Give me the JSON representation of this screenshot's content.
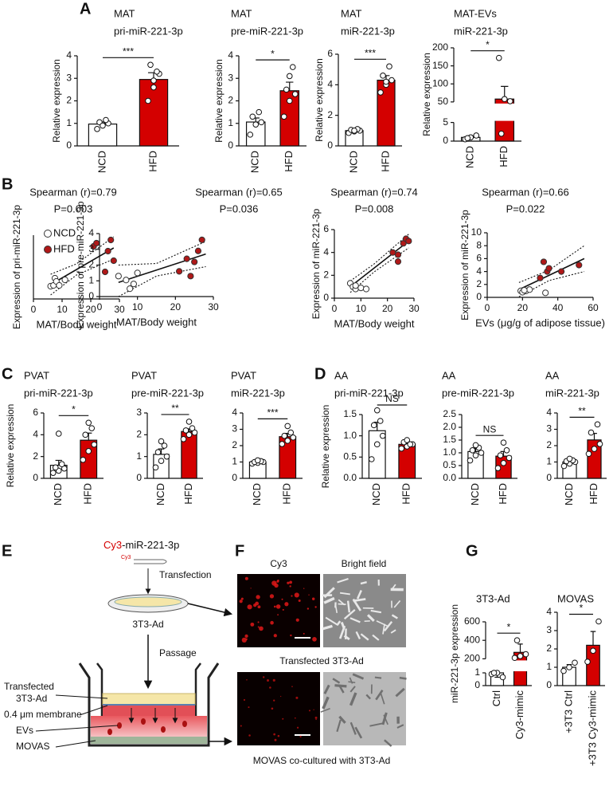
{
  "panel_labels": [
    "A",
    "B",
    "C",
    "D",
    "E",
    "F",
    "G"
  ],
  "chart_data": [
    {
      "type": "bar",
      "title": [
        "MAT",
        "pri-miR-221-3p"
      ],
      "y_label": "Relative expression",
      "categories": [
        "NCD",
        "HFD"
      ],
      "colors": [
        "#ffffff",
        "#d40000"
      ],
      "values": [
        0.97,
        2.95
      ],
      "errors": [
        0.08,
        0.3
      ],
      "points": [
        [
          0.75,
          0.95,
          1.0,
          1.05,
          1.15,
          0.9
        ],
        [
          2.0,
          2.6,
          3.2,
          3.6,
          3.3,
          2.9
        ]
      ],
      "significance": "***",
      "ylim": [
        0,
        4
      ],
      "yticks": [
        0,
        1,
        2,
        3,
        4
      ]
    },
    {
      "type": "bar",
      "title": [
        "MAT",
        "pre-miR-221-3p"
      ],
      "y_label": "Relative expression",
      "categories": [
        "NCD",
        "HFD"
      ],
      "colors": [
        "#ffffff",
        "#d40000"
      ],
      "values": [
        1.06,
        2.45
      ],
      "errors": [
        0.18,
        0.38
      ],
      "points": [
        [
          0.5,
          0.95,
          1.05,
          1.3,
          1.5
        ],
        [
          1.3,
          2.0,
          2.3,
          2.5,
          3.5,
          3.1
        ]
      ],
      "significance": "*",
      "ylim": [
        0,
        4
      ],
      "yticks": [
        0,
        1,
        2,
        3,
        4
      ]
    },
    {
      "type": "bar",
      "title": [
        "MAT",
        "miR-221-3p"
      ],
      "y_label": "Relative expression",
      "categories": [
        "NCD",
        "HFD"
      ],
      "colors": [
        "#ffffff",
        "#d40000"
      ],
      "values": [
        1.0,
        4.3
      ],
      "errors": [
        0.05,
        0.3
      ],
      "points": [
        [
          0.85,
          0.95,
          1.0,
          1.05,
          1.1,
          1.0
        ],
        [
          3.5,
          4.0,
          4.3,
          4.6,
          5.2,
          4.2
        ]
      ],
      "significance": "***",
      "ylim": [
        0,
        6
      ],
      "yticks": [
        0,
        2,
        4,
        6
      ]
    },
    {
      "type": "bar",
      "title": [
        "MAT-EVs",
        "miR-221-3p"
      ],
      "y_label": "Relative expression",
      "categories": [
        "NCD",
        "HFD"
      ],
      "colors": [
        "#ffffff",
        "#d40000"
      ],
      "values": [
        1.0,
        58
      ],
      "errors": [
        0.4,
        35
      ],
      "points": [
        [
          0.5,
          1.0,
          1.5,
          0.8
        ],
        [
          172,
          58,
          52,
          2
        ]
      ],
      "significance": "*",
      "ylim": [
        0,
        200
      ],
      "axis_break": [
        5,
        50
      ],
      "yticks": [
        0,
        5,
        50,
        100,
        150,
        200
      ]
    },
    {
      "type": "scatter",
      "title": [
        "Spearman (r)=0.79",
        "P=0.003"
      ],
      "x_label": "MAT/Body weight",
      "y_label": "Expression of pri-miR-221-3p",
      "xlim": [
        0,
        30
      ],
      "xticks": [
        0,
        10,
        20,
        30
      ],
      "ylim": [
        0,
        4
      ],
      "series": [
        {
          "name": "NCD",
          "color": "#ffffff",
          "x": [
            6,
            7,
            7.5,
            8,
            9,
            11
          ],
          "values": [
            0.8,
            0.85,
            1.3,
            1.1,
            0.85,
            1.2
          ]
        },
        {
          "name": "HFD",
          "color": "#b01818",
          "x": [
            21,
            22,
            25,
            26,
            27,
            28
          ],
          "values": [
            3.3,
            3.5,
            1.7,
            3.0,
            3.7,
            2.4
          ]
        }
      ],
      "fit": {
        "x": [
          6,
          28
        ],
        "values": [
          0.9,
          3.2
        ]
      },
      "band_upper": {
        "x": [
          6,
          15,
          28
        ],
        "values": [
          1.55,
          2.2,
          3.9
        ]
      },
      "band_lower": {
        "x": [
          6,
          15,
          28
        ],
        "values": [
          0.25,
          1.5,
          2.5
        ]
      }
    },
    {
      "type": "scatter",
      "title": [
        "Spearman (r)=0.65",
        "P=0.036"
      ],
      "x_label": "MAT/Body weight",
      "y_label": "Expression of pre-miR-221-3p",
      "xlim": [
        0,
        30
      ],
      "xticks": [
        0,
        10,
        20,
        30
      ],
      "ylim": [
        0,
        4
      ],
      "yticks": [
        0,
        1,
        2,
        3,
        4
      ],
      "series": [
        {
          "color": "#ffffff",
          "x": [
            5,
            7,
            8,
            10,
            9
          ],
          "values": [
            1.3,
            1.05,
            0.5,
            1.5,
            0.8
          ]
        },
        {
          "color": "#b01818",
          "x": [
            21,
            23,
            24,
            26,
            27,
            25
          ],
          "values": [
            1.6,
            2.4,
            1.3,
            2.9,
            3.6,
            2.2
          ]
        }
      ],
      "fit": {
        "x": [
          5,
          28
        ],
        "values": [
          0.9,
          2.7
        ]
      },
      "band_upper": {
        "x": [
          5,
          15,
          28
        ],
        "values": [
          2.0,
          2.1,
          3.5
        ]
      },
      "band_lower": {
        "x": [
          5,
          15,
          28
        ],
        "values": [
          0.0,
          1.3,
          1.9
        ]
      }
    },
    {
      "type": "scatter",
      "title": [
        "Spearman (r)=0.74",
        "P=0.008"
      ],
      "x_label": "MAT/Body weight",
      "y_label": "Expression of miR-221-3p",
      "xlim": [
        0,
        30
      ],
      "xticks": [
        0,
        10,
        20,
        30
      ],
      "ylim": [
        0,
        6
      ],
      "yticks": [
        0,
        2,
        4,
        6
      ],
      "series": [
        {
          "color": "#ffffff",
          "x": [
            6,
            7,
            8,
            10,
            12,
            8
          ],
          "values": [
            1.3,
            1.0,
            0.8,
            0.9,
            0.8,
            1.1
          ]
        },
        {
          "color": "#b01818",
          "x": [
            22,
            24,
            24,
            26,
            27,
            28
          ],
          "values": [
            4.0,
            3.8,
            3.2,
            4.8,
            5.2,
            5.0
          ]
        }
      ],
      "fit": {
        "x": [
          6,
          28
        ],
        "values": [
          1.0,
          5.0
        ]
      },
      "band_upper": {
        "x": [
          6,
          15,
          28
        ],
        "values": [
          1.5,
          3.0,
          5.6
        ]
      },
      "band_lower": {
        "x": [
          6,
          15,
          28
        ],
        "values": [
          0.5,
          2.3,
          4.4
        ]
      }
    },
    {
      "type": "scatter",
      "title": [
        "Spearman (r)=0.66",
        "P=0.022"
      ],
      "x_label": "EVs (μg/g of adipose tissue)",
      "y_label": "Expression of miR-221-3p",
      "xlim": [
        0,
        60
      ],
      "xticks": [
        0,
        20,
        40,
        60
      ],
      "ylim": [
        0,
        10
      ],
      "yticks": [
        0,
        2,
        4,
        6,
        8,
        10
      ],
      "series": [
        {
          "color": "#ffffff",
          "x": [
            19,
            20,
            22,
            24,
            33,
            21
          ],
          "values": [
            1.0,
            0.8,
            1.0,
            1.2,
            0.7,
            1.1
          ]
        },
        {
          "color": "#b01818",
          "x": [
            30,
            32,
            34,
            35,
            42,
            52
          ],
          "values": [
            3.0,
            5.5,
            4.0,
            4.5,
            4.0,
            5.0
          ]
        }
      ],
      "fit": {
        "x": [
          18,
          55
        ],
        "values": [
          1.2,
          6.0
        ]
      },
      "band_upper": {
        "x": [
          18,
          35,
          55
        ],
        "values": [
          2.3,
          4.2,
          8.0
        ]
      },
      "band_lower": {
        "x": [
          18,
          35,
          55
        ],
        "values": [
          0.1,
          2.6,
          4.0
        ]
      }
    },
    {
      "type": "bar",
      "title": [
        "PVAT",
        "pri-miR-221-3p"
      ],
      "y_label": "Relative expression",
      "categories": [
        "NCD",
        "HFD"
      ],
      "colors": [
        "#ffffff",
        "#d40000"
      ],
      "values": [
        1.2,
        3.5
      ],
      "errors": [
        0.45,
        0.65
      ],
      "points": [
        [
          0.5,
          0.7,
          0.9,
          1.0,
          1.3,
          4.1
        ],
        [
          1.7,
          2.5,
          3.1,
          4.0,
          4.6,
          5.1
        ]
      ],
      "significance": "*",
      "ylim": [
        0,
        6
      ],
      "yticks": [
        0,
        2,
        4,
        6
      ]
    },
    {
      "type": "bar",
      "title": [
        "PVAT",
        "pre-miR-221-3p"
      ],
      "categories": [
        "NCD",
        "HFD"
      ],
      "colors": [
        "#ffffff",
        "#d40000"
      ],
      "values": [
        1.1,
        2.15
      ],
      "errors": [
        0.25,
        0.12
      ],
      "points": [
        [
          0.5,
          0.8,
          1.0,
          1.2,
          1.5,
          1.7
        ],
        [
          1.8,
          2.0,
          2.1,
          2.2,
          2.3,
          2.6
        ]
      ],
      "significance": "**",
      "ylim": [
        0,
        3
      ],
      "yticks": [
        0,
        1,
        2,
        3
      ]
    },
    {
      "type": "bar",
      "title": [
        "PVAT",
        "miR-221-3p"
      ],
      "categories": [
        "NCD",
        "HFD"
      ],
      "colors": [
        "#ffffff",
        "#d40000"
      ],
      "values": [
        1.0,
        2.55
      ],
      "errors": [
        0.05,
        0.2
      ],
      "points": [
        [
          0.9,
          0.95,
          1.0,
          1.0,
          1.05,
          1.1
        ],
        [
          2.1,
          2.3,
          2.5,
          2.6,
          2.8,
          3.2
        ]
      ],
      "significance": "***",
      "ylim": [
        0,
        4
      ],
      "yticks": [
        0,
        1,
        2,
        3,
        4
      ]
    },
    {
      "type": "bar",
      "title": [
        "AA",
        "pri-miR-221-3p"
      ],
      "y_label": "Relative expression",
      "categories": [
        "NCD",
        "HFD"
      ],
      "colors": [
        "#ffffff",
        "#d40000"
      ],
      "values": [
        1.12,
        0.8
      ],
      "errors": [
        0.2,
        0.05
      ],
      "points": [
        [
          0.45,
          0.8,
          1.0,
          1.25,
          1.35,
          1.6
        ],
        [
          0.7,
          0.75,
          0.8,
          0.85,
          0.8,
          0.9
        ]
      ],
      "significance": "NS",
      "ylim": [
        0,
        1.5
      ],
      "yticks": [
        {
          "value": 0,
          "label": "0.0"
        },
        {
          "value": 0.5,
          "label": "0.5"
        },
        {
          "value": 1,
          "label": "1.0"
        },
        {
          "value": 1.5,
          "label": "1.5"
        }
      ]
    },
    {
      "type": "bar",
      "title": [
        "AA",
        "pre-miR-221-3p"
      ],
      "categories": [
        "NCD",
        "HFD"
      ],
      "colors": [
        "#ffffff",
        "#d40000"
      ],
      "values": [
        1.05,
        0.87
      ],
      "errors": [
        0.12,
        0.18
      ],
      "points": [
        [
          0.7,
          0.9,
          1.0,
          1.1,
          1.2,
          1.3
        ],
        [
          0.4,
          0.6,
          0.8,
          0.9,
          1.1,
          1.4
        ]
      ],
      "significance": "NS",
      "ylim": [
        0,
        2.5
      ],
      "yticks": [
        {
          "value": 0,
          "label": "0.0"
        },
        {
          "value": 0.5,
          "label": "0.5"
        },
        {
          "value": 1,
          "label": "1.0"
        },
        {
          "value": 1.5,
          "label": "1.5"
        },
        {
          "value": 2,
          "label": "2.0"
        },
        {
          "value": 2.5,
          "label": "2.5"
        }
      ]
    },
    {
      "type": "bar",
      "title": [
        "AA",
        "miR-221-3p"
      ],
      "categories": [
        "NCD",
        "HFD"
      ],
      "colors": [
        "#ffffff",
        "#d40000"
      ],
      "values": [
        1.0,
        2.35
      ],
      "errors": [
        0.1,
        0.4
      ],
      "points": [
        [
          0.75,
          0.9,
          1.0,
          1.05,
          1.1,
          1.2
        ],
        [
          1.5,
          1.8,
          2.1,
          2.8,
          3.3
        ]
      ],
      "significance": "**",
      "ylim": [
        0,
        4
      ],
      "yticks": [
        0,
        1,
        2,
        3,
        4
      ]
    },
    {
      "type": "bar",
      "title": [
        "3T3-Ad"
      ],
      "y_label": "miR-221-3p expression",
      "categories": [
        "Ctrl",
        "Cy3-mimic"
      ],
      "colors": [
        "#ffffff",
        "#d40000"
      ],
      "values": [
        1.0,
        270
      ],
      "errors": [
        0.05,
        90
      ],
      "points": [
        [
          0.9,
          1.0,
          1.05,
          1.0
        ],
        [
          210,
          230,
          250,
          400
        ]
      ],
      "significance": "*",
      "ylim": [
        0,
        600
      ],
      "axis_break": [
        1,
        200
      ],
      "yticks": [
        0,
        1,
        200,
        400,
        600
      ]
    },
    {
      "type": "bar",
      "title": [
        "MOVAS"
      ],
      "categories": [
        "+3T3 Ctrl",
        "+3T3 Cy3-mimic"
      ],
      "colors": [
        "#ffffff",
        "#d40000"
      ],
      "values": [
        1.0,
        2.2
      ],
      "errors": [
        0.15,
        0.75
      ],
      "points": [
        [
          0.8,
          1.0,
          1.25
        ],
        [
          1.3,
          1.9,
          3.5
        ]
      ],
      "significance": "*",
      "ylim": [
        0,
        4
      ],
      "yticks": [
        0,
        1,
        2,
        3,
        4
      ]
    }
  ],
  "diagram": {
    "probe_prefix": "Cy3",
    "probe_name": "-miR-221-3p",
    "hairpin_tag": "Cy3",
    "step1": "Transfection",
    "dish": "3T3-Ad",
    "step2": "Passage",
    "insert_cells": [
      "Transfected",
      "3T3-Ad"
    ],
    "membrane": "0.4 μm membrane",
    "evs": "EVs",
    "bottom_cells": "MOVAS"
  },
  "micrographs": {
    "channel_1": "Cy3",
    "channel_2": "Bright field",
    "row_1": "Transfected 3T3-Ad",
    "row_2": "MOVAS co-cultured with 3T3-Ad"
  }
}
